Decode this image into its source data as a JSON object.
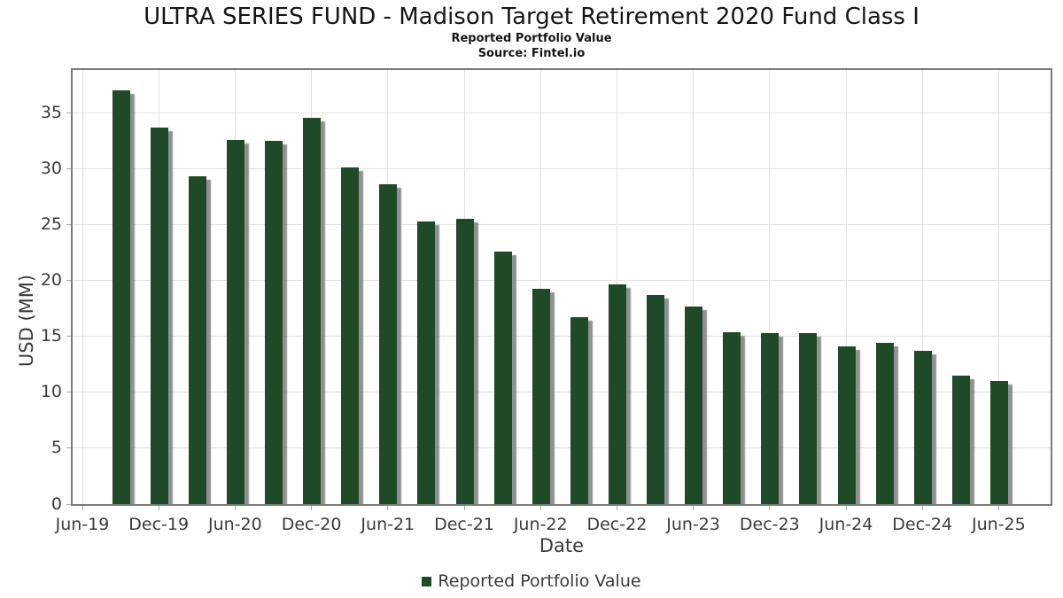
{
  "header": {
    "title": "ULTRA SERIES FUND - Madison Target Retirement 2020 Fund Class I",
    "subtitle": "Reported Portfolio Value",
    "source": "Source: Fintel.io"
  },
  "chart_data": {
    "type": "bar",
    "title": "ULTRA SERIES FUND - Madison Target Retirement 2020 Fund Class I",
    "subtitle": "Reported Portfolio Value",
    "source": "Source: Fintel.io",
    "xlabel": "Date",
    "ylabel": "USD (MM)",
    "ylim": [
      0,
      38.85
    ],
    "yticks": [
      0,
      5,
      10,
      15,
      20,
      25,
      30,
      35
    ],
    "xtick_labels": [
      "Jun-19",
      "Dec-19",
      "Jun-20",
      "Dec-20",
      "Jun-21",
      "Dec-21",
      "Jun-22",
      "Dec-22",
      "Jun-23",
      "Dec-23",
      "Jun-24",
      "Dec-24",
      "Jun-25"
    ],
    "grid": true,
    "legend": {
      "label": "Reported Portfolio Value",
      "position": "bottom-center"
    },
    "colors": {
      "bar": "#1e4a27",
      "bar_shadow": "#7d7d7d",
      "grid": "#e2e2e2",
      "axis_border": "#7b7b7b",
      "tick_text": "#3b3b3b"
    },
    "categories": [
      "Sep-19",
      "Dec-19",
      "Mar-20",
      "Jun-20",
      "Sep-20",
      "Dec-20",
      "Mar-21",
      "Jun-21",
      "Sep-21",
      "Dec-21",
      "Mar-22",
      "Jun-22",
      "Sep-22",
      "Dec-22",
      "Mar-23",
      "Jun-23",
      "Sep-23",
      "Dec-23",
      "Mar-24",
      "Jun-24",
      "Sep-24",
      "Dec-24",
      "Mar-25",
      "Jun-25"
    ],
    "values": [
      37.0,
      33.7,
      29.3,
      32.6,
      32.5,
      34.6,
      30.1,
      28.6,
      25.3,
      25.5,
      22.6,
      19.3,
      16.7,
      19.7,
      18.7,
      17.7,
      15.4,
      15.3,
      15.3,
      14.1,
      14.4,
      13.7,
      11.5,
      11.0
    ]
  }
}
